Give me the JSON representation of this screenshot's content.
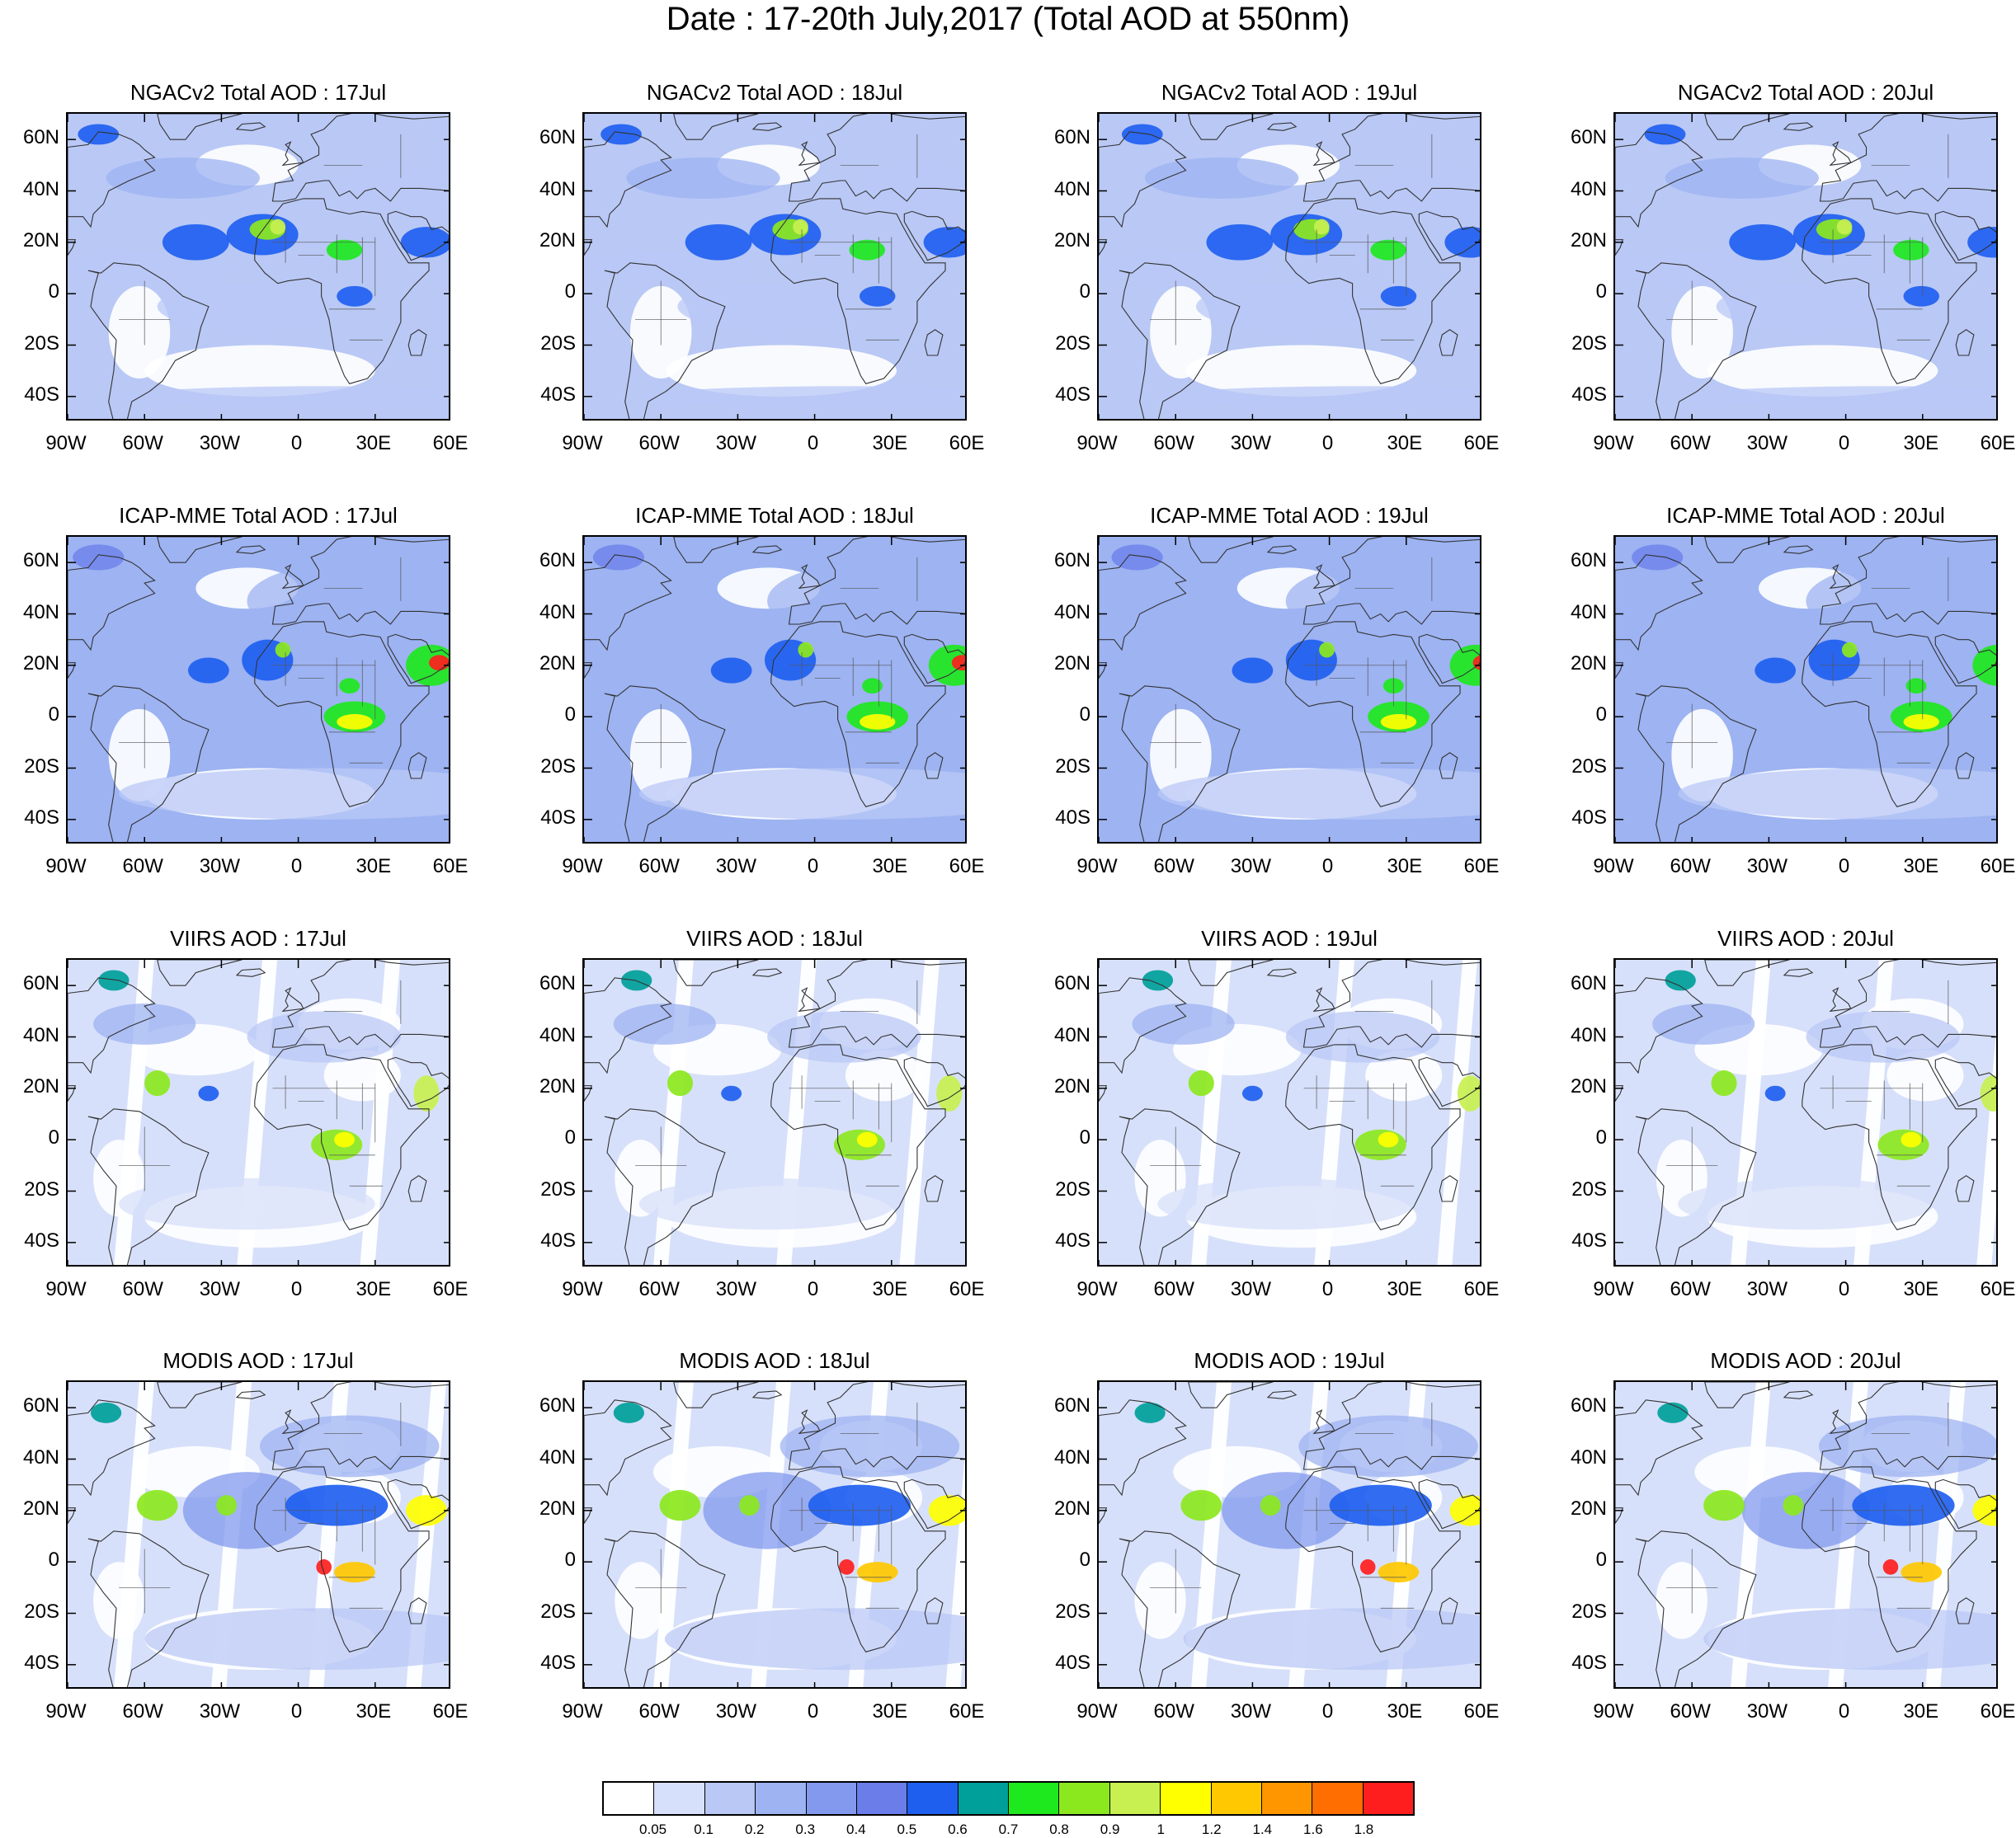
{
  "title": "Date : 17-20th July,2017 (Total AOD at 550nm)",
  "axes": {
    "lat_labels": [
      "60N",
      "40N",
      "20N",
      "0",
      "20S",
      "40S"
    ],
    "lon_labels": [
      "90W",
      "60W",
      "30W",
      "0",
      "30E",
      "60E"
    ],
    "lat_values": [
      60,
      40,
      20,
      0,
      -20,
      -40
    ],
    "lon_values": [
      -90,
      -60,
      -30,
      0,
      30,
      60
    ],
    "lat_range": [
      -50,
      70
    ],
    "lon_range": [
      -90,
      60
    ]
  },
  "panels": [
    {
      "title": "NGACv2 Total AOD : 17Jul",
      "source": "ngac",
      "day": 17
    },
    {
      "title": "NGACv2 Total AOD : 18Jul",
      "source": "ngac",
      "day": 18
    },
    {
      "title": "NGACv2 Total AOD : 19Jul",
      "source": "ngac",
      "day": 19
    },
    {
      "title": "NGACv2 Total AOD : 20Jul",
      "source": "ngac",
      "day": 20
    },
    {
      "title": "ICAP-MME Total AOD : 17Jul",
      "source": "icap",
      "day": 17
    },
    {
      "title": "ICAP-MME Total AOD : 18Jul",
      "source": "icap",
      "day": 18
    },
    {
      "title": "ICAP-MME Total AOD : 19Jul",
      "source": "icap",
      "day": 19
    },
    {
      "title": "ICAP-MME Total AOD : 20Jul",
      "source": "icap",
      "day": 20
    },
    {
      "title": "VIIRS AOD : 17Jul",
      "source": "viirs",
      "day": 17
    },
    {
      "title": "VIIRS AOD : 18Jul",
      "source": "viirs",
      "day": 18
    },
    {
      "title": "VIIRS AOD : 19Jul",
      "source": "viirs",
      "day": 19
    },
    {
      "title": "VIIRS AOD : 20Jul",
      "source": "viirs",
      "day": 20
    },
    {
      "title": "MODIS AOD : 17Jul",
      "source": "modis",
      "day": 17
    },
    {
      "title": "MODIS AOD : 18Jul",
      "source": "modis",
      "day": 18
    },
    {
      "title": "MODIS AOD : 19Jul",
      "source": "modis",
      "day": 19
    },
    {
      "title": "MODIS AOD : 20Jul",
      "source": "modis",
      "day": 20
    }
  ],
  "colorbar": {
    "labels": [
      "0.05",
      "0.1",
      "0.2",
      "0.3",
      "0.4",
      "0.5",
      "0.6",
      "0.7",
      "0.8",
      "0.9",
      "1",
      "1.2",
      "1.4",
      "1.6",
      "1.8"
    ],
    "colors": [
      "#ffffff",
      "#d7e0fa",
      "#b9c8f5",
      "#9db3f2",
      "#8299ee",
      "#6a7de9",
      "#1f5ff0",
      "#00a09a",
      "#1ee81e",
      "#8ce81e",
      "#c8f050",
      "#ffff00",
      "#ffc800",
      "#ff9600",
      "#ff6e00",
      "#ff1e1e"
    ]
  }
}
